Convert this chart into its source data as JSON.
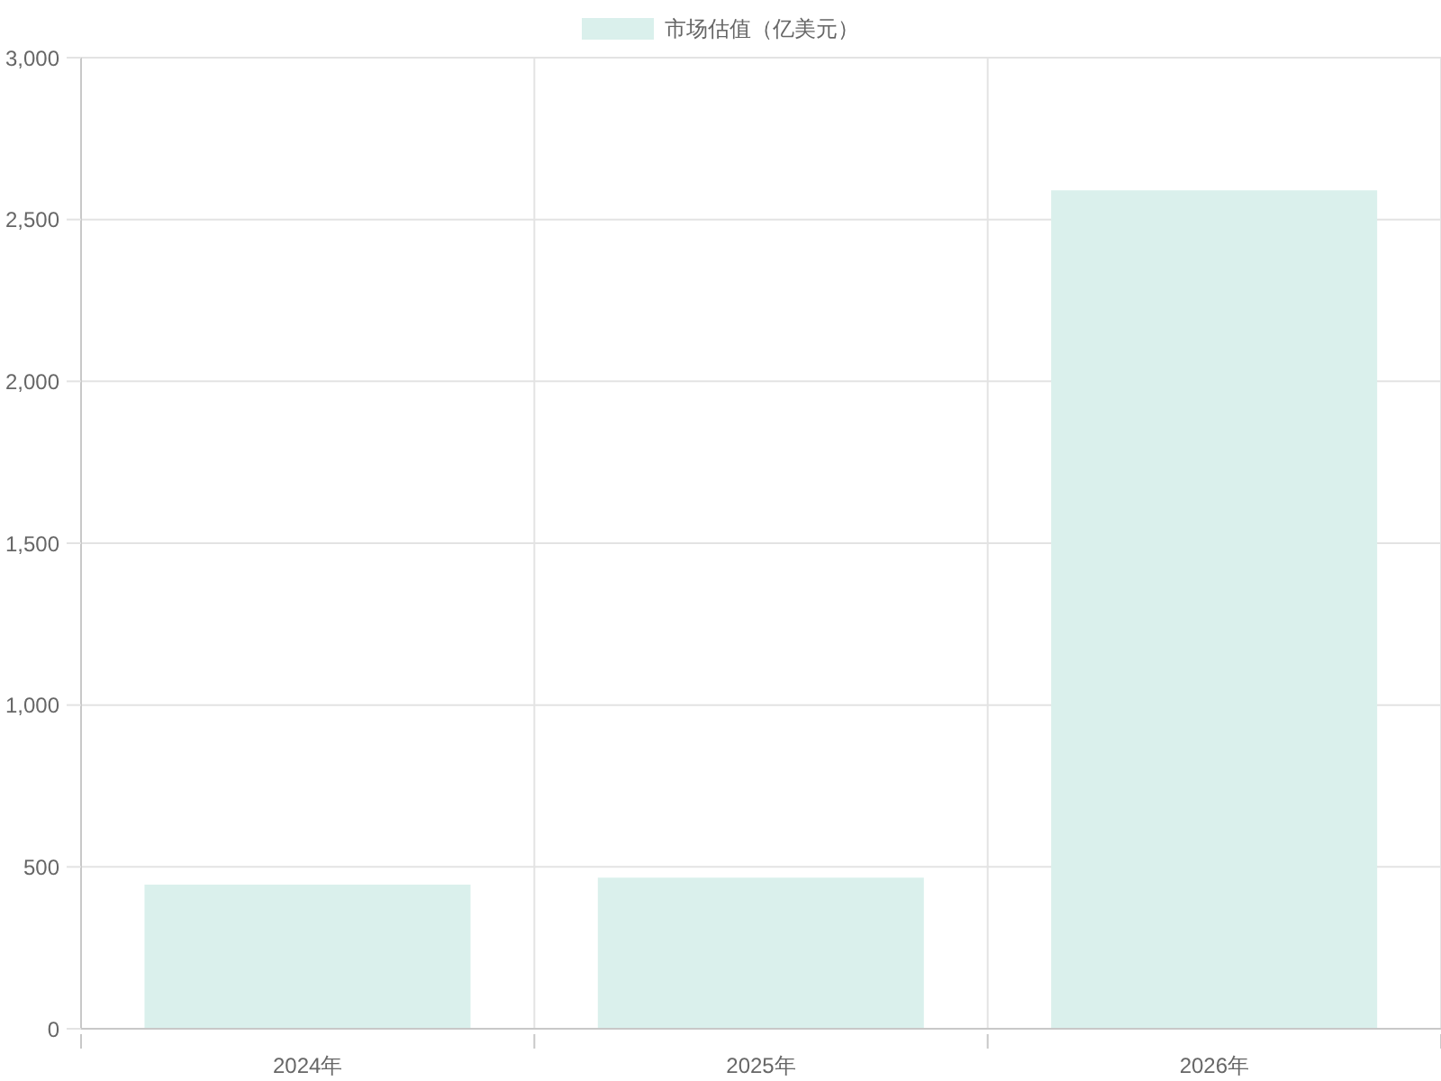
{
  "chart_data": {
    "type": "bar",
    "categories": [
      "2024年",
      "2025年",
      "2026年"
    ],
    "series": [
      {
        "name": "市场估值（亿美元）",
        "color": "#daf0ec",
        "values": [
          445,
          467,
          2590
        ]
      }
    ],
    "ylim": [
      0,
      3000
    ],
    "yticks": [
      0,
      500,
      {
        "value": 1000,
        "label": "1,000"
      },
      {
        "value": 1500,
        "label": "1,500"
      },
      {
        "value": 2000,
        "label": "2,000"
      },
      {
        "value": 2500,
        "label": "2,500"
      },
      {
        "value": 3000,
        "label": "3,000"
      }
    ],
    "grid": true,
    "legend": "top"
  }
}
